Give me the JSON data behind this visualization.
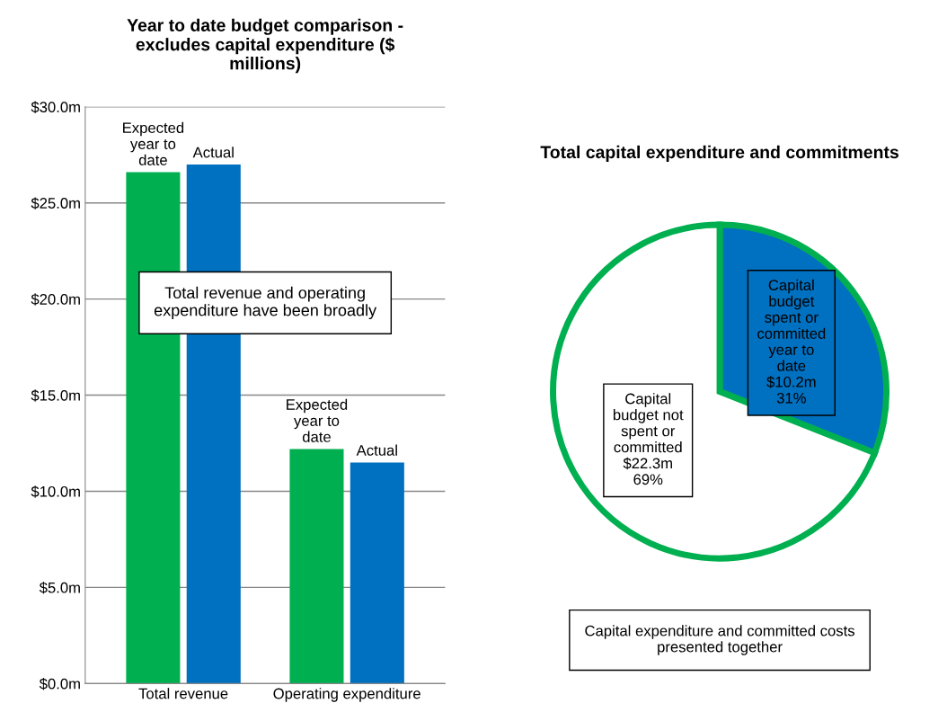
{
  "chart_data": [
    {
      "type": "bar",
      "title": "Year to date budget comparison - excludes capital expenditure ($ millions)",
      "categories": [
        "Total revenue",
        "Operating expenditure"
      ],
      "series": [
        {
          "name": "Expected year to date",
          "color": "#00b050",
          "values": [
            26.6,
            12.2
          ]
        },
        {
          "name": "Actual",
          "color": "#0070c0",
          "values": [
            27.0,
            11.5
          ]
        }
      ],
      "ylim": [
        0,
        30
      ],
      "yticks": [
        {
          "value": 0,
          "label": "$0.0m"
        },
        {
          "value": 5,
          "label": "$5.0m"
        },
        {
          "value": 10,
          "label": "$10.0m"
        },
        {
          "value": 15,
          "label": "$15.0m"
        },
        {
          "value": 20,
          "label": "$20.0m"
        },
        {
          "value": 25,
          "label": "$25.0m"
        },
        {
          "value": 30,
          "label": "$30.0m"
        }
      ],
      "grid": "y",
      "legend": false,
      "annotations": [
        "Total revenue and operating expenditure have been broadly"
      ]
    },
    {
      "type": "pie",
      "title": "Total capital expenditure and commitments",
      "categories": [
        "Capital budget spent or committed year to date $10.2m",
        "Capital budget not spent or committed $22.3m"
      ],
      "values": [
        31,
        69
      ],
      "value_labels": [
        "31%",
        "69%"
      ],
      "colors": [
        "#0070c0",
        "#ffffff"
      ],
      "legend": false,
      "annotations": [
        "Capital expenditure and committed costs presented together"
      ]
    }
  ]
}
